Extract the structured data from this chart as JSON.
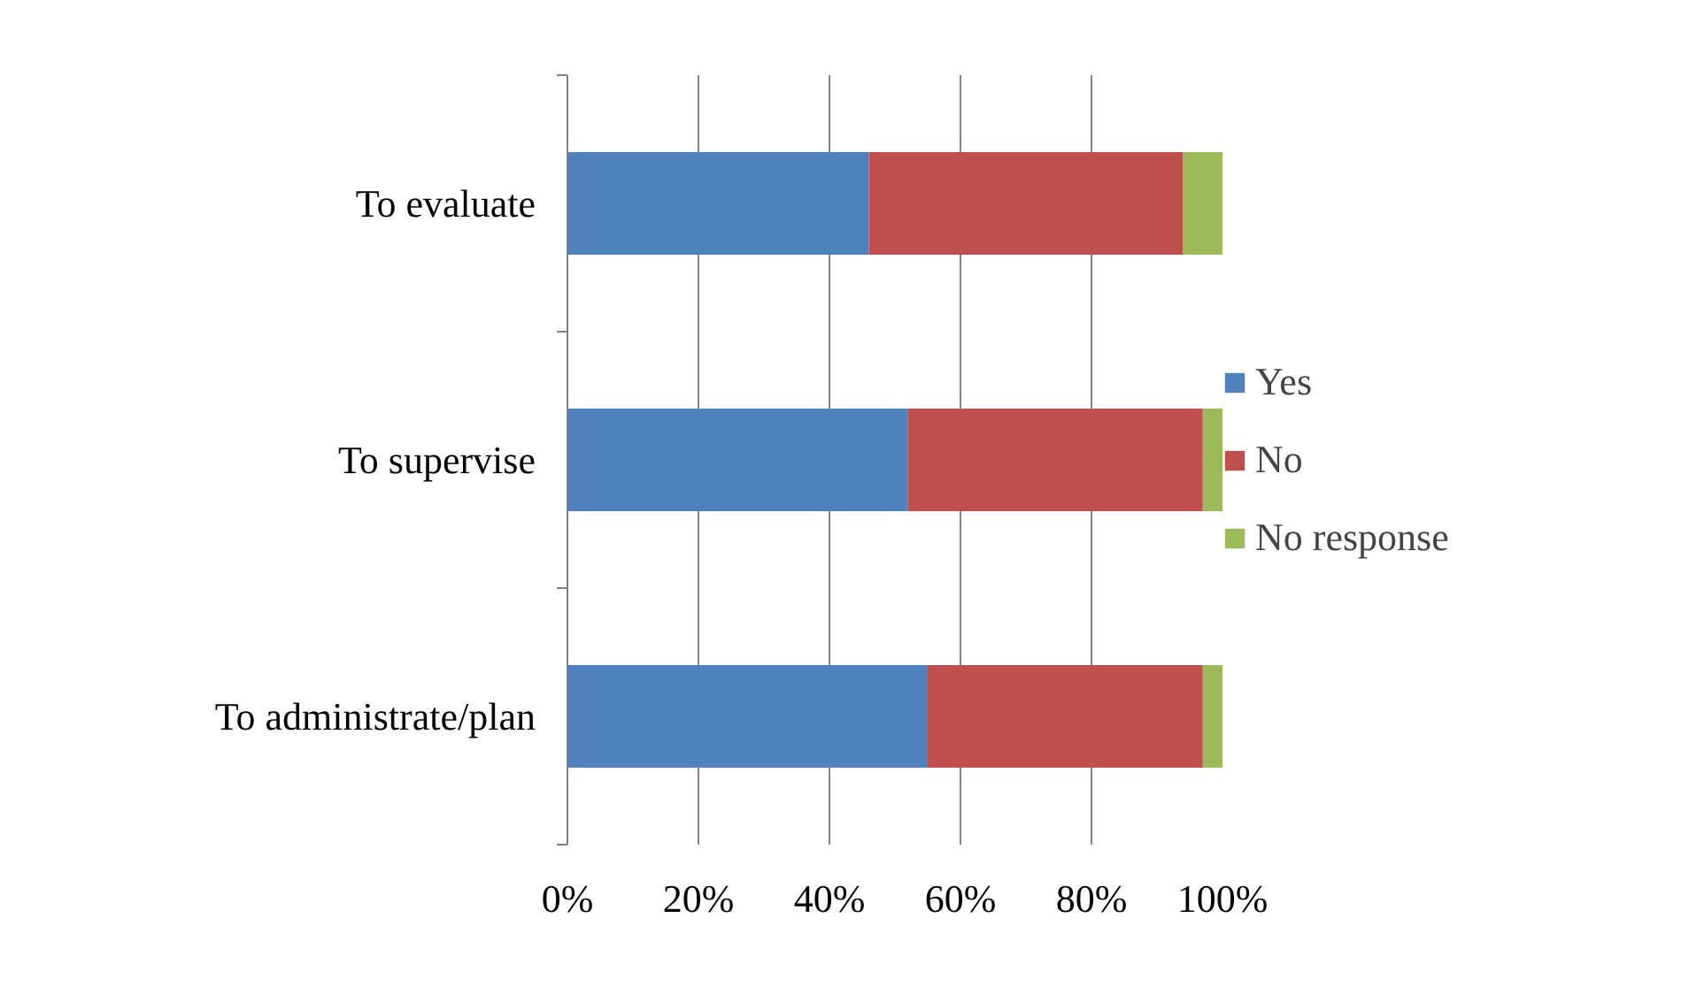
{
  "chart_data": {
    "type": "bar",
    "orientation": "horizontal",
    "stacked": true,
    "categories": [
      "To evaluate",
      "To supervise",
      "To administrate/plan"
    ],
    "series": [
      {
        "name": "Yes",
        "color": "#4f81bd",
        "values": [
          46,
          52,
          55
        ]
      },
      {
        "name": "No",
        "color": "#c0504d",
        "values": [
          48,
          45,
          42
        ]
      },
      {
        "name": "No response",
        "color": "#9bbb59",
        "values": [
          6,
          3,
          3
        ]
      }
    ],
    "xlim": [
      0,
      100
    ],
    "xticks": [
      {
        "value": 0,
        "label": "0%"
      },
      {
        "value": 20,
        "label": "20%"
      },
      {
        "value": 40,
        "label": "40%"
      },
      {
        "value": 60,
        "label": "60%"
      },
      {
        "value": 80,
        "label": "80%"
      },
      {
        "value": 100,
        "label": "100%"
      }
    ],
    "grid": "x",
    "legend": "right"
  }
}
